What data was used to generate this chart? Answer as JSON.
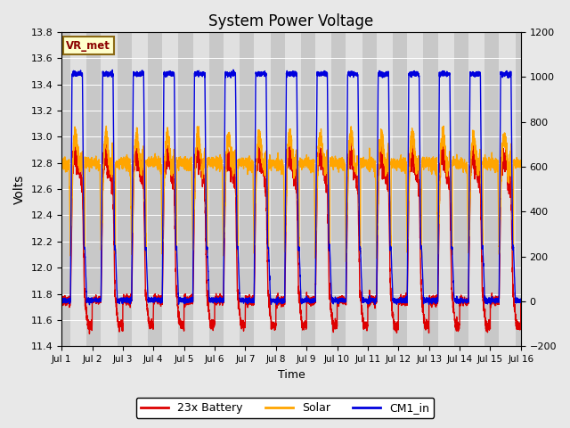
{
  "title": "System Power Voltage",
  "xlabel": "Time",
  "ylabel": "Volts",
  "ylim_left": [
    11.4,
    13.8
  ],
  "ylim_right": [
    -200,
    1200
  ],
  "yticks_left": [
    11.4,
    11.6,
    11.8,
    12.0,
    12.2,
    12.4,
    12.6,
    12.8,
    13.0,
    13.2,
    13.4,
    13.6,
    13.8
  ],
  "yticks_right": [
    -200,
    0,
    200,
    400,
    600,
    800,
    1000,
    1200
  ],
  "xtick_labels": [
    "Jul 1",
    "Jul 2",
    "Jul 3",
    "Jul 4",
    "Jul 5",
    "Jul 6",
    "Jul 7",
    "Jul 8",
    "Jul 9",
    "Jul 10",
    "Jul 11",
    "Jul 12",
    "Jul 13",
    "Jul 14",
    "Jul 15",
    "Jul 16"
  ],
  "color_battery": "#dd0000",
  "color_solar": "#ffa500",
  "color_cm1": "#0000dd",
  "legend_label_battery": "23x Battery",
  "legend_label_solar": "Solar",
  "legend_label_cm1": "CM1_in",
  "annotation_text": "VR_met",
  "fig_bg": "#e8e8e8",
  "plot_bg_day": "#e0e0e0",
  "plot_bg_night": "#c8c8c8",
  "linewidth": 1.0,
  "n_days": 15
}
